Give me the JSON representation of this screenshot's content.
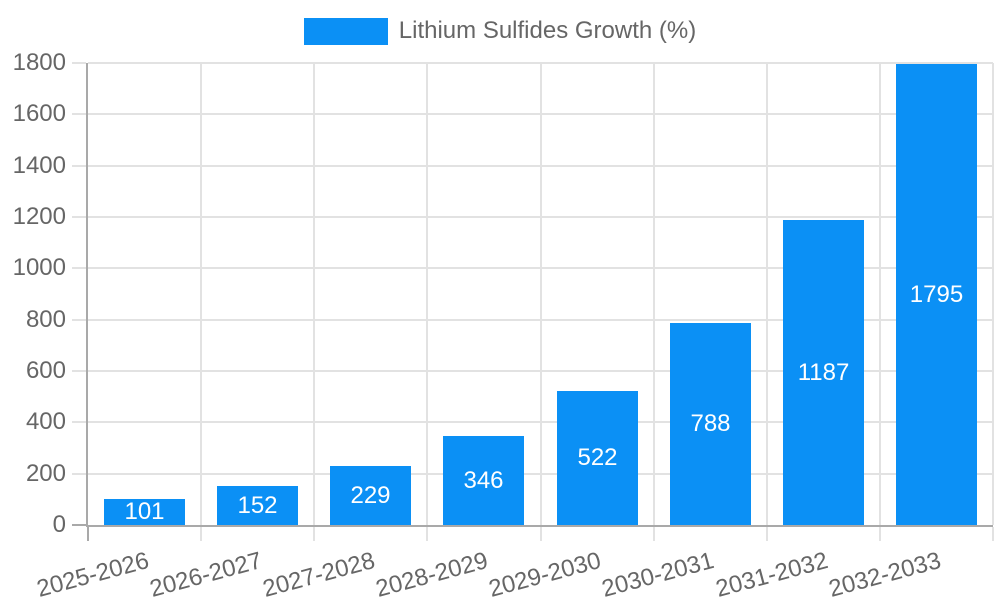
{
  "chart_data": {
    "type": "bar",
    "title": "Lithium Sulfides Growth (%)",
    "legend": [
      "Lithium Sulfides Growth (%)"
    ],
    "legend_position": "top-center",
    "categories": [
      "2025-2026",
      "2026-2027",
      "2027-2028",
      "2028-2029",
      "2029-2030",
      "2030-2031",
      "2031-2032",
      "2032-2033"
    ],
    "values": [
      101,
      152,
      229,
      346,
      522,
      788,
      1187,
      1795
    ],
    "value_labels_shown": true,
    "value_label_position": "inside-center",
    "xlabel": "",
    "ylabel": "",
    "ylim": [
      0,
      1800
    ],
    "yticks": [
      0,
      200,
      400,
      600,
      800,
      1000,
      1200,
      1400,
      1600,
      1800
    ],
    "x_tick_rotation_deg": -15,
    "grid": true
  },
  "colors": {
    "accent": "#0b90f5",
    "grid": "#e2e2e2",
    "axis": "#a9a9a9",
    "text": "#666666",
    "value_label": "#ffffff",
    "background": "#ffffff"
  }
}
